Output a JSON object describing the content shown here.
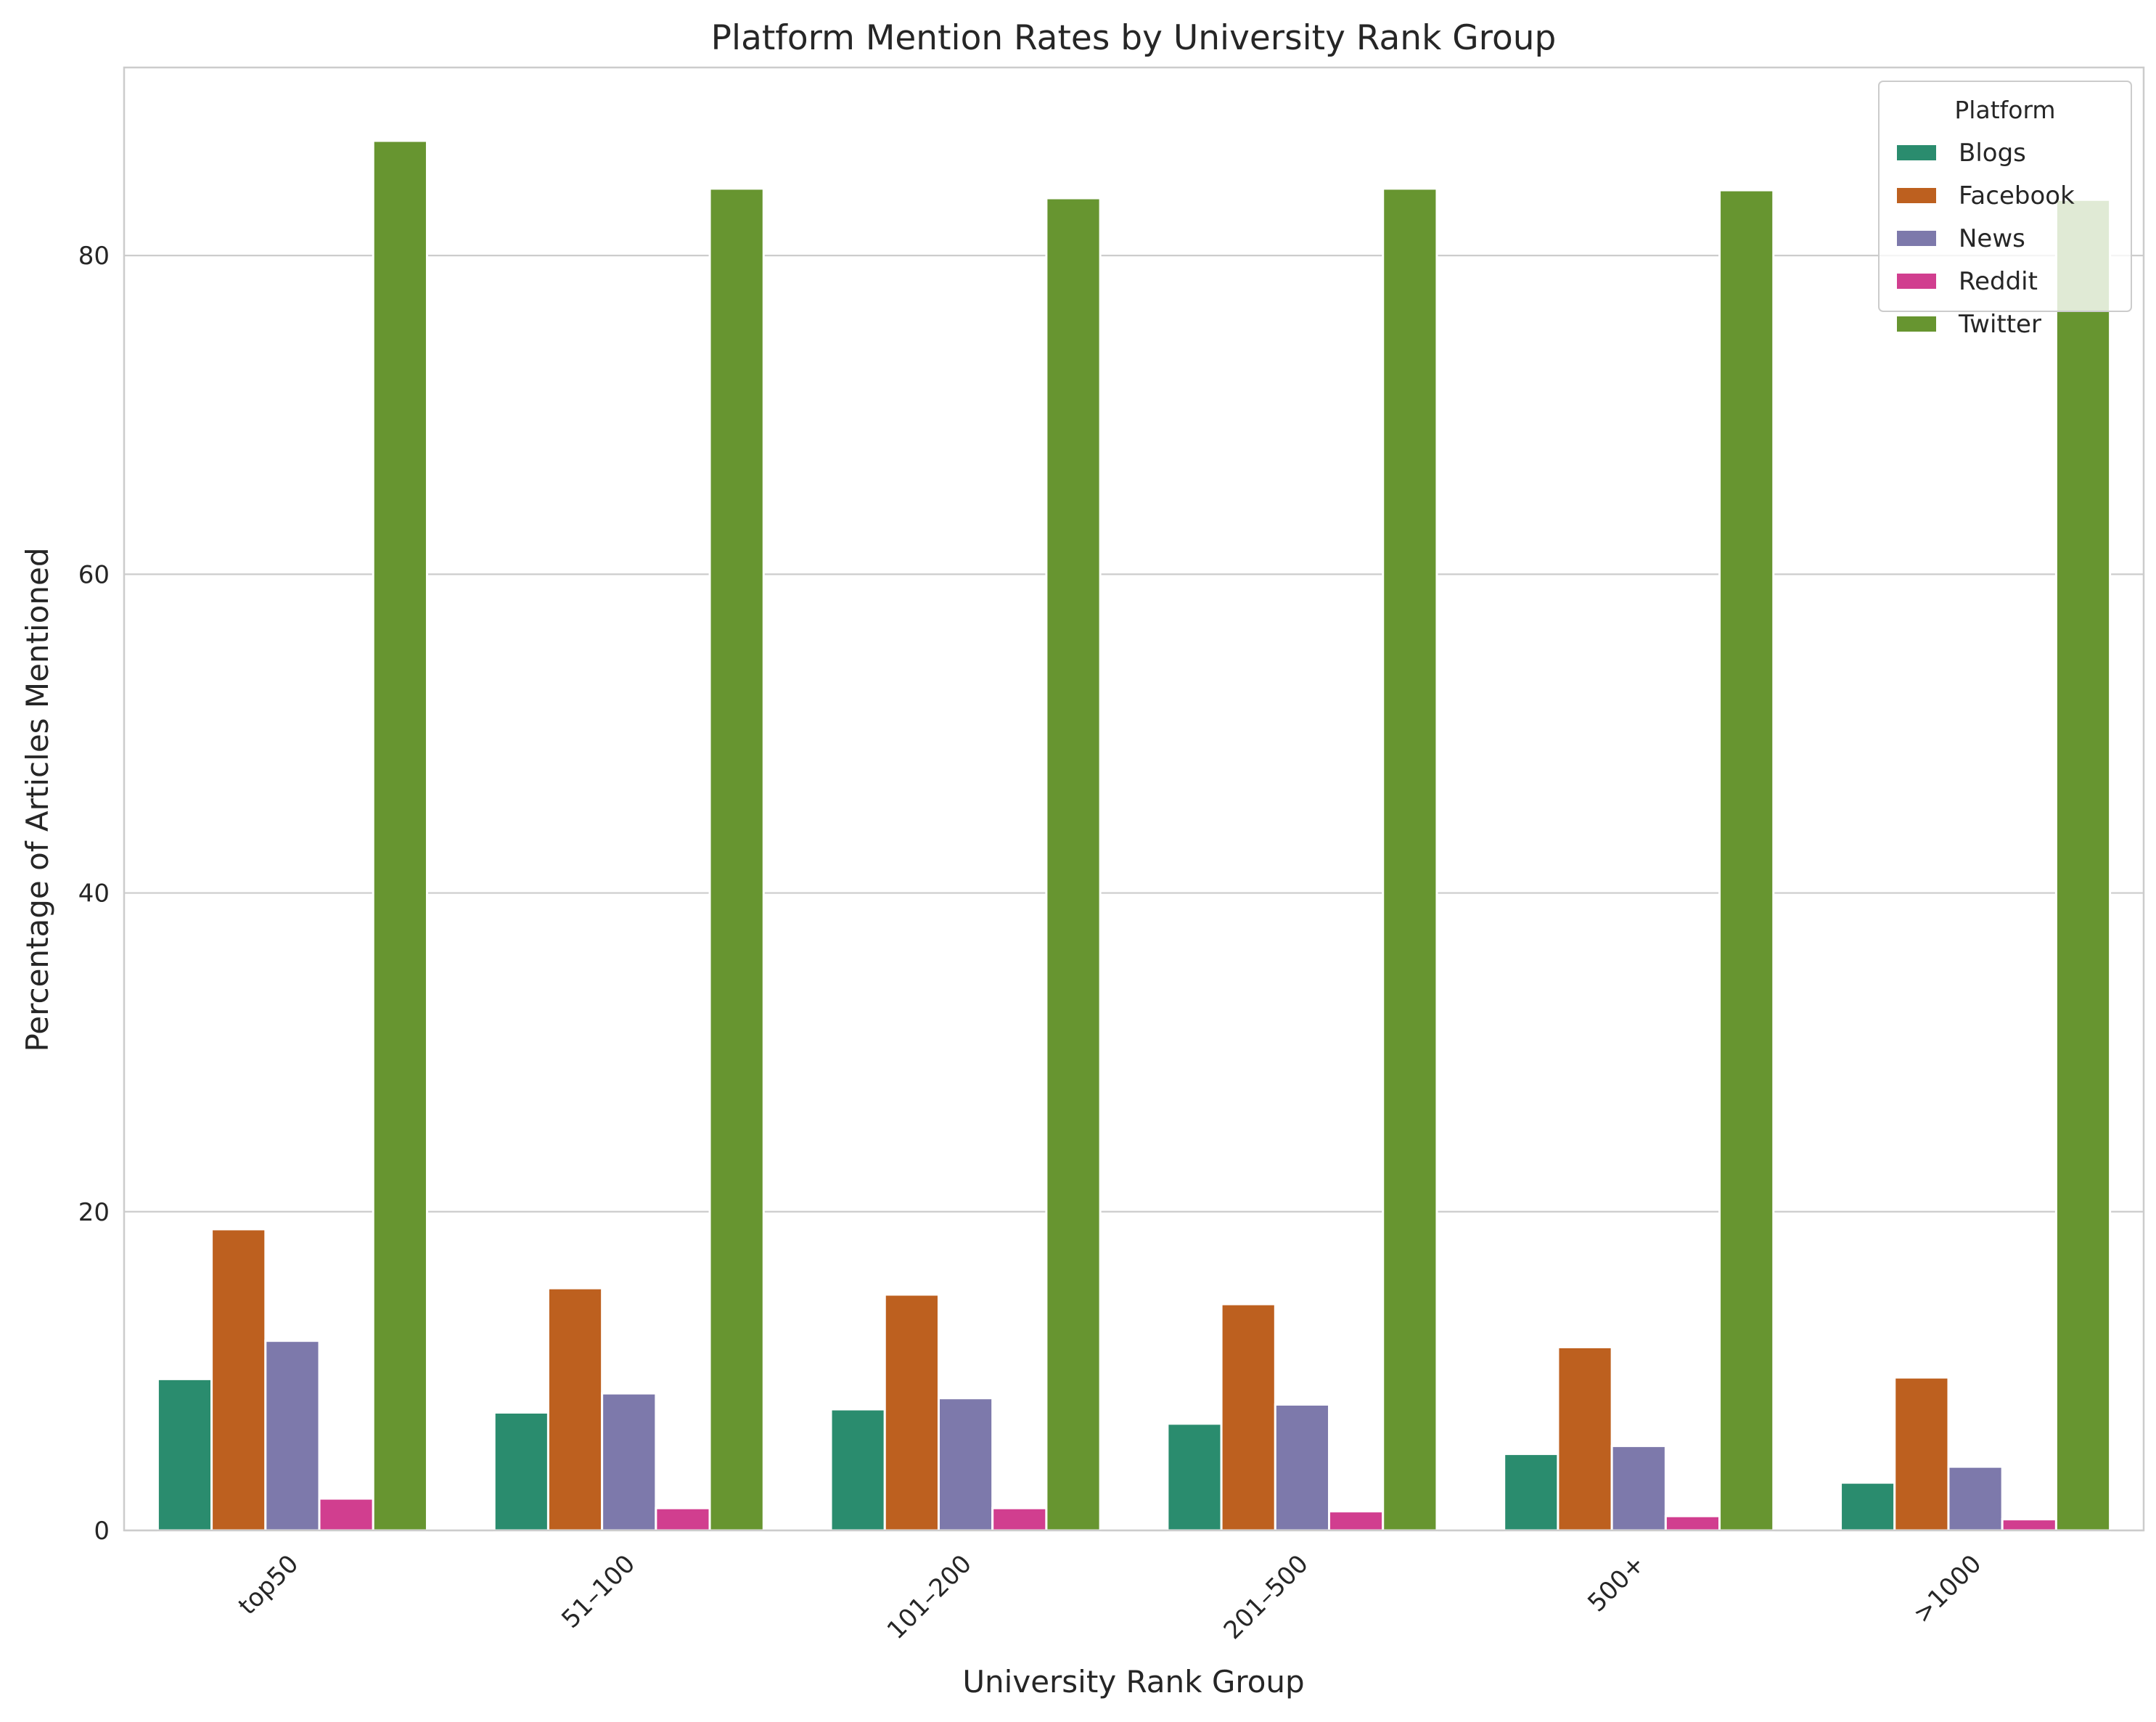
{
  "chart_data": {
    "type": "bar",
    "title": "Platform Mention Rates by University Rank Group",
    "xlabel": "University Rank Group",
    "ylabel": "Percentage of Articles Mentioned",
    "categories": [
      "top50",
      "51–100",
      "101–200",
      "201–500",
      "500+",
      ">1000"
    ],
    "ylim": [
      0,
      91.8
    ],
    "yticks": [
      0,
      20,
      40,
      60,
      80
    ],
    "grid": "horizontal",
    "legend": {
      "title": "Platform",
      "placement": "top-right"
    },
    "series": [
      {
        "name": "Blogs",
        "color": "#2a8c6e",
        "values": [
          9.5,
          7.4,
          7.6,
          6.7,
          4.8,
          3.0
        ]
      },
      {
        "name": "Facebook",
        "color": "#bd601f",
        "values": [
          18.9,
          15.2,
          14.8,
          14.2,
          11.5,
          9.6
        ]
      },
      {
        "name": "News",
        "color": "#7d79ab",
        "values": [
          11.9,
          8.6,
          8.3,
          7.9,
          5.3,
          4.0
        ]
      },
      {
        "name": "Reddit",
        "color": "#d13e8f",
        "values": [
          2.0,
          1.4,
          1.4,
          1.2,
          0.9,
          0.7
        ]
      },
      {
        "name": "Twitter",
        "color": "#679530",
        "values": [
          87.2,
          84.2,
          83.6,
          84.2,
          84.1,
          83.5
        ]
      }
    ]
  }
}
